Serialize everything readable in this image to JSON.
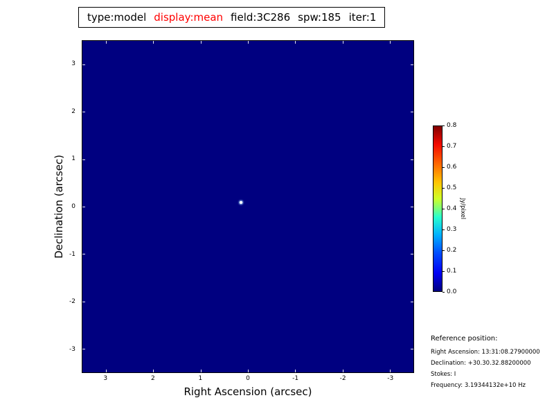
{
  "title": {
    "type": "type:model",
    "display": "display:mean",
    "field": "field:3C286",
    "spw": "spw:185",
    "iter": "iter:1"
  },
  "axes": {
    "x_label": "Right Ascension (arcsec)",
    "y_label": "Declination (arcsec)",
    "x_ticks": [
      "3",
      "2",
      "1",
      "0",
      "-1",
      "-2",
      "-3"
    ],
    "y_ticks": [
      "3",
      "2",
      "1",
      "0",
      "-1",
      "-2",
      "-3"
    ]
  },
  "colorbar": {
    "label": "Jy/pixel",
    "ticks": [
      "0.8",
      "0.7",
      "0.6",
      "0.5",
      "0.4",
      "0.3",
      "0.2",
      "0.1",
      "0.0"
    ],
    "colormap": "jet"
  },
  "reference": {
    "heading": "Reference position:",
    "lines": [
      "Right Ascension: 13:31:08.27900000",
      "Declination: +30.30.32.88200000",
      "Stokes: I",
      "Frequency: 3.19344132e+10 Hz"
    ]
  },
  "colors": {
    "plot_background": "#000080",
    "title_highlight": "#ff0000",
    "jet_stops": [
      "#000080",
      "#0000ff",
      "#00ffff",
      "#7bff7b",
      "#ffff00",
      "#ff0000",
      "#800000"
    ]
  },
  "chart_data": {
    "type": "heatmap",
    "title": "type:model display:mean field:3C286 spw:185 iter:1",
    "xlabel": "Right Ascension (arcsec)",
    "ylabel": "Declination (arcsec)",
    "xlim": [
      3.5,
      -3.5
    ],
    "ylim": [
      -3.5,
      3.5
    ],
    "x_ticks": [
      3,
      2,
      1,
      0,
      -1,
      -2,
      -3
    ],
    "y_ticks": [
      3,
      2,
      1,
      0,
      -1,
      -2,
      -3
    ],
    "grid": false,
    "background_value": 0.0,
    "colorbar": {
      "label": "Jy/pixel",
      "range": [
        0.0,
        0.8
      ],
      "ticks": [
        0.0,
        0.1,
        0.2,
        0.3,
        0.4,
        0.5,
        0.6,
        0.7,
        0.8
      ],
      "colormap": "jet",
      "position": "right"
    },
    "points": [
      {
        "ra_arcsec": 0.1,
        "dec_arcsec": 0.05,
        "note": "single bright point source near field center, appears white/saturated against 0.0 background"
      }
    ]
  }
}
